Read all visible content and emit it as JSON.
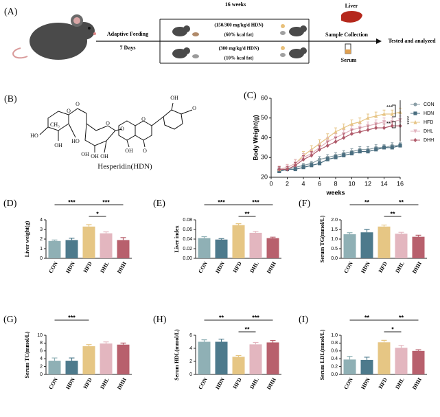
{
  "panel_a": {
    "label": "(A)",
    "duration": "16 weeks",
    "step1": "Adaptive Feeding",
    "step1_time": "7 Days",
    "group1_dose": "(150/300 mg/kg/d HDN)",
    "group1_diet": "(60% kcal fat)",
    "group2_dose": "(300 mg/kg/d HDN)",
    "group2_diet": "(10% kcal fat)",
    "liver": "Liver",
    "collection": "Sample Collection",
    "serum": "Serum",
    "result": "Tested and analyzed"
  },
  "panel_b": {
    "label": "(B)",
    "atoms": [
      "O",
      "O",
      "HO",
      "CH₃",
      "OH",
      "HO",
      "OH",
      "O",
      "OH",
      "OH",
      "O",
      "O",
      "OH",
      "O",
      "OH",
      "O"
    ],
    "caption": "Hesperidin(HDN)"
  },
  "chart_data": [
    {
      "type": "line",
      "label": "(C)",
      "xlabel": "weeks",
      "ylabel": "Body Weight(g)",
      "x": [
        1,
        2,
        3,
        4,
        5,
        6,
        7,
        8,
        9,
        10,
        11,
        12,
        13,
        14,
        15,
        16
      ],
      "xlim": [
        0,
        16
      ],
      "xticks": [
        0,
        2,
        4,
        6,
        8,
        10,
        12,
        14,
        16
      ],
      "ylim": [
        20,
        60
      ],
      "yticks": [
        20,
        30,
        40,
        50,
        60
      ],
      "series": [
        {
          "name": "CON",
          "color": "#8a9ea6",
          "marker": "circle",
          "values": [
            24,
            24,
            25,
            26,
            27,
            29,
            30,
            31,
            32,
            33,
            34,
            34,
            35,
            35,
            36,
            36
          ],
          "errors": [
            1,
            1,
            1,
            1,
            1,
            1.5,
            1.5,
            1.5,
            1.5,
            1.5,
            1.5,
            1.5,
            1.5,
            1.5,
            1.5,
            1.5
          ]
        },
        {
          "name": "HDN",
          "color": "#4a6e80",
          "marker": "square",
          "values": [
            23,
            24,
            24,
            25,
            26,
            27,
            29,
            30,
            31,
            32,
            33,
            33,
            34,
            35,
            35,
            36
          ],
          "errors": [
            1,
            1,
            1,
            1,
            1,
            1,
            1,
            1,
            1,
            1,
            1,
            1,
            1,
            1,
            1,
            1
          ]
        },
        {
          "name": "HFD",
          "color": "#e6c484",
          "marker": "triangle",
          "values": [
            24,
            25,
            27,
            31,
            34,
            37,
            40,
            43,
            45,
            47,
            48,
            50,
            51,
            52,
            52,
            53
          ],
          "errors": [
            1.5,
            1.5,
            2,
            2,
            2,
            2,
            2,
            2,
            2,
            2,
            2,
            2,
            2,
            2,
            2,
            2
          ]
        },
        {
          "name": "DHL",
          "color": "#e2b4bf",
          "marker": "triangle-down",
          "values": [
            24,
            25,
            27,
            30,
            32,
            35,
            38,
            40,
            42,
            44,
            45,
            46,
            47,
            48,
            48,
            49
          ],
          "errors": [
            1.5,
            1.5,
            2,
            2,
            2,
            2,
            2,
            2,
            2,
            2,
            2,
            2,
            2,
            2,
            2,
            2
          ]
        },
        {
          "name": "DHH",
          "color": "#b05a6a",
          "marker": "diamond",
          "values": [
            24,
            24,
            26,
            29,
            31,
            34,
            36,
            38,
            40,
            42,
            43,
            44,
            45,
            45,
            46,
            46
          ],
          "errors": [
            1.5,
            1.5,
            1.5,
            2,
            2,
            2,
            2,
            2,
            2,
            2,
            2,
            2,
            2,
            2,
            2,
            2
          ]
        }
      ],
      "annotations": [
        "***",
        "**",
        "****"
      ]
    },
    {
      "type": "bar",
      "label": "(D)",
      "ylabel": "Liver weight(g)",
      "categories": [
        "CON",
        "HDN",
        "HFD",
        "DHL",
        "DHH"
      ],
      "colors": [
        "#8fb0b5",
        "#4d7a8c",
        "#e6c684",
        "#e3b6bf",
        "#b8606d"
      ],
      "values": [
        1.8,
        1.9,
        3.3,
        2.6,
        1.9
      ],
      "errors": [
        0.1,
        0.2,
        0.2,
        0.15,
        0.25
      ],
      "ylim": [
        0,
        4
      ],
      "yticks": [
        0,
        1,
        2,
        3,
        4
      ],
      "significance": [
        {
          "label": "***",
          "between": [
            "CON",
            "HFD"
          ]
        },
        {
          "label": "***",
          "between": [
            "HFD",
            "DHH"
          ]
        },
        {
          "label": "*",
          "between": [
            "HFD",
            "DHL"
          ]
        }
      ]
    },
    {
      "type": "bar",
      "label": "(E)",
      "ylabel": "Liver index",
      "categories": [
        "CON",
        "HDN",
        "HFD",
        "DHL",
        "DHH"
      ],
      "colors": [
        "#8fb0b5",
        "#4d7a8c",
        "#e6c684",
        "#e3b6bf",
        "#b8606d"
      ],
      "values": [
        0.042,
        0.039,
        0.069,
        0.053,
        0.042
      ],
      "errors": [
        0.003,
        0.002,
        0.003,
        0.003,
        0.002
      ],
      "ylim": [
        0,
        0.08
      ],
      "yticks": [
        {
          "value": 0,
          "label": "0.00"
        },
        {
          "value": 0.02,
          "label": "0.02"
        },
        {
          "value": 0.04,
          "label": "0.04"
        },
        {
          "value": 0.06,
          "label": "0.06"
        },
        {
          "value": 0.08,
          "label": "0.08"
        }
      ],
      "significance": [
        {
          "label": "***",
          "between": [
            "CON",
            "HFD"
          ]
        },
        {
          "label": "***",
          "between": [
            "HFD",
            "DHH"
          ]
        },
        {
          "label": "**",
          "between": [
            "HFD",
            "DHL"
          ]
        }
      ]
    },
    {
      "type": "bar",
      "label": "(F)",
      "ylabel": "Serum TG(mmol/L)",
      "categories": [
        "CON",
        "HDN",
        "HFD",
        "DHL",
        "DHH"
      ],
      "colors": [
        "#8fb0b5",
        "#4d7a8c",
        "#e6c684",
        "#e3b6bf",
        "#b8606d"
      ],
      "values": [
        1.25,
        1.35,
        1.65,
        1.28,
        1.12
      ],
      "errors": [
        0.08,
        0.15,
        0.08,
        0.07,
        0.08
      ],
      "ylim": [
        0,
        2
      ],
      "yticks": [
        {
          "value": 0,
          "label": "0.0"
        },
        {
          "value": 0.5,
          "label": "0.5"
        },
        {
          "value": 1,
          "label": "1.0"
        },
        {
          "value": 1.5,
          "label": "1.5"
        },
        {
          "value": 2,
          "label": "2.0"
        }
      ],
      "significance": [
        {
          "label": "**",
          "between": [
            "CON",
            "HFD"
          ]
        },
        {
          "label": "**",
          "between": [
            "HFD",
            "DHH"
          ]
        },
        {
          "label": "**",
          "between": [
            "HFD",
            "DHL"
          ]
        }
      ]
    },
    {
      "type": "bar",
      "label": "(G)",
      "ylabel": "Serum TC(mmol/L)",
      "categories": [
        "CON",
        "HDN",
        "HFD",
        "DHL",
        "DHH"
      ],
      "colors": [
        "#8fb0b5",
        "#4d7a8c",
        "#e6c684",
        "#e3b6bf",
        "#b8606d"
      ],
      "values": [
        3.5,
        3.5,
        7.2,
        7.9,
        7.6
      ],
      "errors": [
        0.7,
        0.7,
        0.4,
        0.4,
        0.4
      ],
      "ylim": [
        0,
        10
      ],
      "yticks": [
        0,
        2,
        4,
        6,
        8,
        10
      ],
      "significance": [
        {
          "label": "***",
          "between": [
            "CON",
            "HFD"
          ]
        }
      ]
    },
    {
      "type": "bar",
      "label": "(H)",
      "ylabel": "Serum HDL(mmol/L)",
      "categories": [
        "CON",
        "HDN",
        "HFD",
        "DHL",
        "DHH"
      ],
      "colors": [
        "#8fb0b5",
        "#4d7a8c",
        "#e6c684",
        "#e3b6bf",
        "#b8606d"
      ],
      "values": [
        5,
        5,
        2.7,
        4.6,
        4.9
      ],
      "errors": [
        0.3,
        0.4,
        0.2,
        0.3,
        0.3
      ],
      "ylim": [
        0,
        6
      ],
      "yticks": [
        0,
        2,
        4,
        6
      ],
      "significance": [
        {
          "label": "**",
          "between": [
            "CON",
            "HFD"
          ]
        },
        {
          "label": "***",
          "between": [
            "HFD",
            "DHH"
          ]
        },
        {
          "label": "**",
          "between": [
            "HFD",
            "DHL"
          ]
        }
      ]
    },
    {
      "type": "bar",
      "label": "(I)",
      "ylabel": "Serum LDL(mmol/L)",
      "categories": [
        "CON",
        "HDN",
        "HFD",
        "DHL",
        "DHH"
      ],
      "colors": [
        "#8fb0b5",
        "#4d7a8c",
        "#e6c684",
        "#e3b6bf",
        "#b8606d"
      ],
      "values": [
        0.38,
        0.37,
        0.82,
        0.68,
        0.6
      ],
      "errors": [
        0.08,
        0.07,
        0.05,
        0.06,
        0.03
      ],
      "ylim": [
        0,
        1
      ],
      "yticks": [
        {
          "value": 0,
          "label": "0.0"
        },
        {
          "value": 0.2,
          "label": "0.2"
        },
        {
          "value": 0.4,
          "label": "0.4"
        },
        {
          "value": 0.6,
          "label": "0.6"
        },
        {
          "value": 0.8,
          "label": "0.8"
        },
        {
          "value": 1,
          "label": "1.0"
        }
      ],
      "significance": [
        {
          "label": "**",
          "between": [
            "CON",
            "HFD"
          ]
        },
        {
          "label": "**",
          "between": [
            "HFD",
            "DHH"
          ]
        },
        {
          "label": "*",
          "between": [
            "HFD",
            "DHL"
          ]
        }
      ]
    }
  ]
}
